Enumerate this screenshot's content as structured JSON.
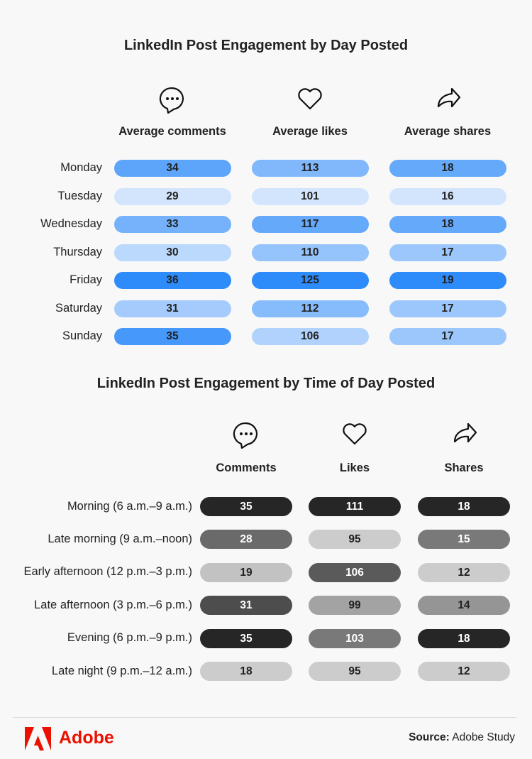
{
  "chart_data": [
    {
      "type": "heatmap",
      "title": "LinkedIn Post Engagement by Day Posted",
      "columns": [
        "Average comments",
        "Average likes",
        "Average shares"
      ],
      "column_icons": [
        "speech-bubble-icon",
        "heart-icon",
        "share-arrow-icon"
      ],
      "rows": [
        "Monday",
        "Tuesday",
        "Wednesday",
        "Thursday",
        "Friday",
        "Saturday",
        "Sunday"
      ],
      "values": [
        [
          34,
          113,
          18
        ],
        [
          29,
          101,
          16
        ],
        [
          33,
          117,
          18
        ],
        [
          30,
          110,
          17
        ],
        [
          36,
          125,
          19
        ],
        [
          31,
          112,
          17
        ],
        [
          35,
          106,
          17
        ]
      ],
      "color_scale": [
        "#d3e5fd",
        "#2e8bfa"
      ]
    },
    {
      "type": "heatmap",
      "title": "LinkedIn Post Engagement by Time of Day Posted",
      "columns": [
        "Comments",
        "Likes",
        "Shares"
      ],
      "column_icons": [
        "speech-bubble-icon",
        "heart-icon",
        "share-arrow-icon"
      ],
      "rows": [
        "Morning (6 a.m.–9 a.m.)",
        "Late morning (9 a.m.–noon)",
        "Early afternoon (12 p.m.–3 p.m.)",
        "Late afternoon (3 p.m.–6 p.m.)",
        "Evening (6 p.m.–9 p.m.)",
        "Late night (9 p.m.–12 a.m.)"
      ],
      "values": [
        [
          35,
          111,
          18
        ],
        [
          28,
          95,
          15
        ],
        [
          19,
          106,
          12
        ],
        [
          31,
          99,
          14
        ],
        [
          35,
          103,
          18
        ],
        [
          18,
          95,
          12
        ]
      ],
      "color_scale": [
        "#cccccc",
        "#262626"
      ]
    }
  ],
  "footer": {
    "logo": "Adobe",
    "source_label": "Source:",
    "source_value": "Adobe Study",
    "brand_color": "#eb1000"
  }
}
